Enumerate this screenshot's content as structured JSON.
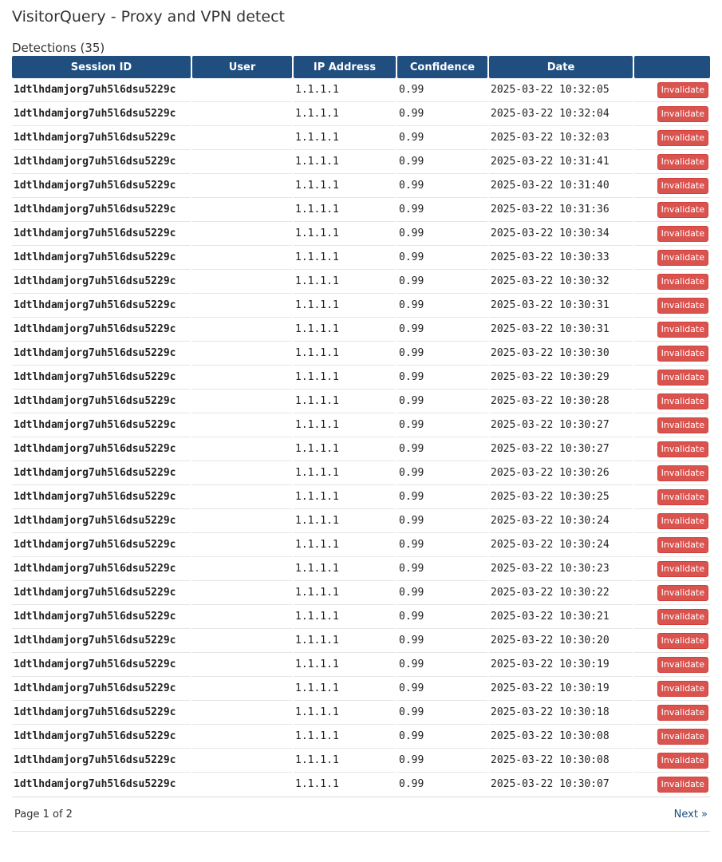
{
  "page": {
    "title": "VisitorQuery - Proxy and VPN detect",
    "subtitle": "Detections (35)"
  },
  "table": {
    "headers": [
      "Session ID",
      "User",
      "IP Address",
      "Confidence",
      "Date",
      ""
    ],
    "action_label": "Invalidate",
    "rows": [
      {
        "session": "1dtlhdamjorg7uh5l6dsu5229c",
        "user": "",
        "ip": "1.1.1.1",
        "confidence": "0.99",
        "date": "2025-03-22 10:32:05"
      },
      {
        "session": "1dtlhdamjorg7uh5l6dsu5229c",
        "user": "",
        "ip": "1.1.1.1",
        "confidence": "0.99",
        "date": "2025-03-22 10:32:04"
      },
      {
        "session": "1dtlhdamjorg7uh5l6dsu5229c",
        "user": "",
        "ip": "1.1.1.1",
        "confidence": "0.99",
        "date": "2025-03-22 10:32:03"
      },
      {
        "session": "1dtlhdamjorg7uh5l6dsu5229c",
        "user": "",
        "ip": "1.1.1.1",
        "confidence": "0.99",
        "date": "2025-03-22 10:31:41"
      },
      {
        "session": "1dtlhdamjorg7uh5l6dsu5229c",
        "user": "",
        "ip": "1.1.1.1",
        "confidence": "0.99",
        "date": "2025-03-22 10:31:40"
      },
      {
        "session": "1dtlhdamjorg7uh5l6dsu5229c",
        "user": "",
        "ip": "1.1.1.1",
        "confidence": "0.99",
        "date": "2025-03-22 10:31:36"
      },
      {
        "session": "1dtlhdamjorg7uh5l6dsu5229c",
        "user": "",
        "ip": "1.1.1.1",
        "confidence": "0.99",
        "date": "2025-03-22 10:30:34"
      },
      {
        "session": "1dtlhdamjorg7uh5l6dsu5229c",
        "user": "",
        "ip": "1.1.1.1",
        "confidence": "0.99",
        "date": "2025-03-22 10:30:33"
      },
      {
        "session": "1dtlhdamjorg7uh5l6dsu5229c",
        "user": "",
        "ip": "1.1.1.1",
        "confidence": "0.99",
        "date": "2025-03-22 10:30:32"
      },
      {
        "session": "1dtlhdamjorg7uh5l6dsu5229c",
        "user": "",
        "ip": "1.1.1.1",
        "confidence": "0.99",
        "date": "2025-03-22 10:30:31"
      },
      {
        "session": "1dtlhdamjorg7uh5l6dsu5229c",
        "user": "",
        "ip": "1.1.1.1",
        "confidence": "0.99",
        "date": "2025-03-22 10:30:31"
      },
      {
        "session": "1dtlhdamjorg7uh5l6dsu5229c",
        "user": "",
        "ip": "1.1.1.1",
        "confidence": "0.99",
        "date": "2025-03-22 10:30:30"
      },
      {
        "session": "1dtlhdamjorg7uh5l6dsu5229c",
        "user": "",
        "ip": "1.1.1.1",
        "confidence": "0.99",
        "date": "2025-03-22 10:30:29"
      },
      {
        "session": "1dtlhdamjorg7uh5l6dsu5229c",
        "user": "",
        "ip": "1.1.1.1",
        "confidence": "0.99",
        "date": "2025-03-22 10:30:28"
      },
      {
        "session": "1dtlhdamjorg7uh5l6dsu5229c",
        "user": "",
        "ip": "1.1.1.1",
        "confidence": "0.99",
        "date": "2025-03-22 10:30:27"
      },
      {
        "session": "1dtlhdamjorg7uh5l6dsu5229c",
        "user": "",
        "ip": "1.1.1.1",
        "confidence": "0.99",
        "date": "2025-03-22 10:30:27"
      },
      {
        "session": "1dtlhdamjorg7uh5l6dsu5229c",
        "user": "",
        "ip": "1.1.1.1",
        "confidence": "0.99",
        "date": "2025-03-22 10:30:26"
      },
      {
        "session": "1dtlhdamjorg7uh5l6dsu5229c",
        "user": "",
        "ip": "1.1.1.1",
        "confidence": "0.99",
        "date": "2025-03-22 10:30:25"
      },
      {
        "session": "1dtlhdamjorg7uh5l6dsu5229c",
        "user": "",
        "ip": "1.1.1.1",
        "confidence": "0.99",
        "date": "2025-03-22 10:30:24"
      },
      {
        "session": "1dtlhdamjorg7uh5l6dsu5229c",
        "user": "",
        "ip": "1.1.1.1",
        "confidence": "0.99",
        "date": "2025-03-22 10:30:24"
      },
      {
        "session": "1dtlhdamjorg7uh5l6dsu5229c",
        "user": "",
        "ip": "1.1.1.1",
        "confidence": "0.99",
        "date": "2025-03-22 10:30:23"
      },
      {
        "session": "1dtlhdamjorg7uh5l6dsu5229c",
        "user": "",
        "ip": "1.1.1.1",
        "confidence": "0.99",
        "date": "2025-03-22 10:30:22"
      },
      {
        "session": "1dtlhdamjorg7uh5l6dsu5229c",
        "user": "",
        "ip": "1.1.1.1",
        "confidence": "0.99",
        "date": "2025-03-22 10:30:21"
      },
      {
        "session": "1dtlhdamjorg7uh5l6dsu5229c",
        "user": "",
        "ip": "1.1.1.1",
        "confidence": "0.99",
        "date": "2025-03-22 10:30:20"
      },
      {
        "session": "1dtlhdamjorg7uh5l6dsu5229c",
        "user": "",
        "ip": "1.1.1.1",
        "confidence": "0.99",
        "date": "2025-03-22 10:30:19"
      },
      {
        "session": "1dtlhdamjorg7uh5l6dsu5229c",
        "user": "",
        "ip": "1.1.1.1",
        "confidence": "0.99",
        "date": "2025-03-22 10:30:19"
      },
      {
        "session": "1dtlhdamjorg7uh5l6dsu5229c",
        "user": "",
        "ip": "1.1.1.1",
        "confidence": "0.99",
        "date": "2025-03-22 10:30:18"
      },
      {
        "session": "1dtlhdamjorg7uh5l6dsu5229c",
        "user": "",
        "ip": "1.1.1.1",
        "confidence": "0.99",
        "date": "2025-03-22 10:30:08"
      },
      {
        "session": "1dtlhdamjorg7uh5l6dsu5229c",
        "user": "",
        "ip": "1.1.1.1",
        "confidence": "0.99",
        "date": "2025-03-22 10:30:08"
      },
      {
        "session": "1dtlhdamjorg7uh5l6dsu5229c",
        "user": "",
        "ip": "1.1.1.1",
        "confidence": "0.99",
        "date": "2025-03-22 10:30:07"
      }
    ]
  },
  "pager": {
    "status": "Page 1 of 2",
    "next_label": "Next »"
  },
  "colors": {
    "header_bg": "#1f4e7f",
    "button_bg": "#d9534f",
    "link": "#1f4e7f"
  }
}
